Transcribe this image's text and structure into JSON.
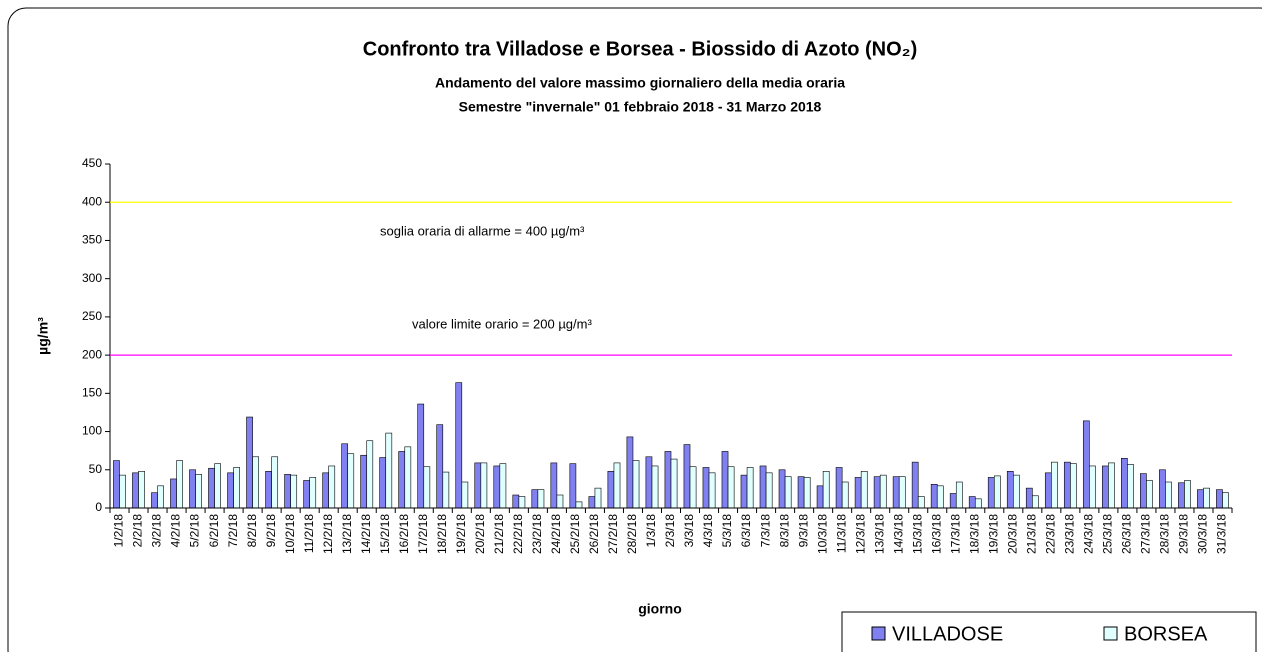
{
  "chart_data": {
    "type": "bar",
    "title": "Confronto tra Villadose e Borsea - Biossido di Azoto (NO₂)",
    "subtitle": [
      "Andamento del valore massimo giornaliero della media oraria",
      "Semestre \"invernale\" 01 febbraio 2018 - 31 Marzo 2018"
    ],
    "x_label": "giorno",
    "y_label": "µg/m³",
    "categories": [
      "1/2/18",
      "2/2/18",
      "3/2/18",
      "4/2/18",
      "5/2/18",
      "6/2/18",
      "7/2/18",
      "8/2/18",
      "9/2/18",
      "10/2/18",
      "11/2/18",
      "12/2/18",
      "13/2/18",
      "14/2/18",
      "15/2/18",
      "16/2/18",
      "17/2/18",
      "18/2/18",
      "19/2/18",
      "20/2/18",
      "21/2/18",
      "22/2/18",
      "23/2/18",
      "24/2/18",
      "25/2/18",
      "26/2/18",
      "27/2/18",
      "28/2/18",
      "1/3/18",
      "2/3/18",
      "3/3/18",
      "4/3/18",
      "5/3/18",
      "6/3/18",
      "7/3/18",
      "8/3/18",
      "9/3/18",
      "10/3/18",
      "11/3/18",
      "12/3/18",
      "13/3/18",
      "14/3/18",
      "15/3/18",
      "16/3/18",
      "17/3/18",
      "18/3/18",
      "19/3/18",
      "20/3/18",
      "21/3/18",
      "22/3/18",
      "23/3/18",
      "24/3/18",
      "25/3/18",
      "26/3/18",
      "27/3/18",
      "28/3/18",
      "29/3/18",
      "30/3/18",
      "31/3/18"
    ],
    "series": [
      {
        "name": "VILLADOSE",
        "color": "#8080f0",
        "values": [
          62,
          46,
          20,
          38,
          50,
          52,
          46,
          119,
          48,
          44,
          36,
          46,
          84,
          69,
          66,
          74,
          136,
          109,
          164,
          59,
          55,
          17,
          24,
          59,
          58,
          15,
          48,
          93,
          67,
          74,
          83,
          53,
          74,
          43,
          55,
          50,
          41,
          29,
          53,
          40,
          41,
          41,
          60,
          31,
          19,
          15,
          40,
          48,
          26,
          46,
          60,
          114,
          55,
          65,
          45,
          50,
          33,
          24,
          24
        ]
      },
      {
        "name": "BORSEA",
        "color": "#e0ffff",
        "values": [
          43,
          48,
          29,
          62,
          44,
          58,
          53,
          67,
          67,
          43,
          40,
          55,
          71,
          88,
          98,
          80,
          54,
          47,
          34,
          59,
          58,
          15,
          24,
          17,
          8,
          26,
          59,
          62,
          55,
          64,
          54,
          46,
          54,
          53,
          46,
          41,
          40,
          48,
          34,
          48,
          43,
          41,
          15,
          29,
          34,
          12,
          42,
          43,
          16,
          60,
          58,
          55,
          59,
          57,
          36,
          34,
          36,
          26,
          20
        ]
      }
    ],
    "ylim": [
      0,
      450
    ],
    "yticks": [
      0,
      50,
      100,
      150,
      200,
      250,
      300,
      350,
      400,
      450
    ],
    "reference_lines": [
      {
        "value": 400,
        "color": "#ffff00",
        "label": "soglia oraria di allarme = 400 µg/m³"
      },
      {
        "value": 200,
        "color": "#ff00ff",
        "label": "valore limite orario = 200 µg/m³"
      }
    ],
    "legend": "bottom-right"
  }
}
